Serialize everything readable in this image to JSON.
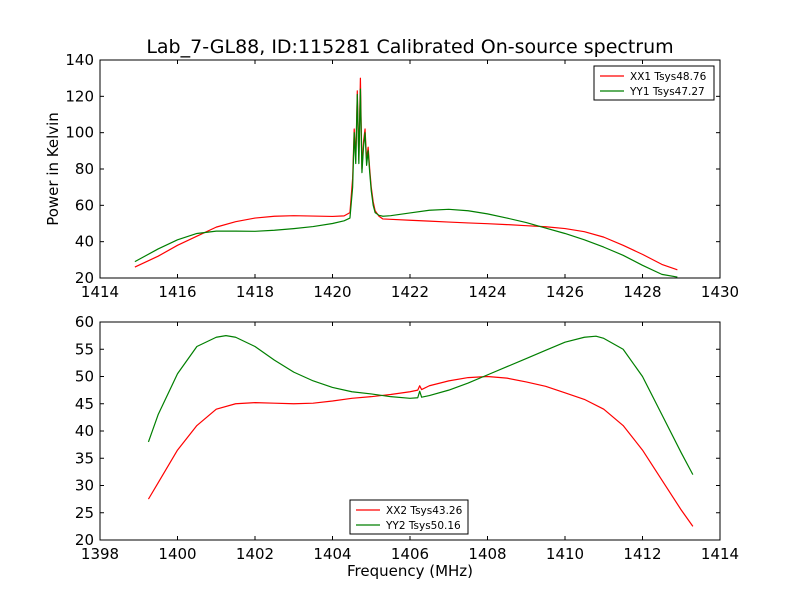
{
  "figure": {
    "title": "Lab_7-GL88, ID:115281 Calibrated On-source spectrum"
  },
  "chart_data": [
    {
      "type": "line",
      "title": "Lab_7-GL88, ID:115281 Calibrated On-source spectrum",
      "xlabel": "",
      "ylabel": "Power in Kelvin",
      "xlim": [
        1414,
        1430
      ],
      "ylim": [
        20,
        140
      ],
      "xticks": [
        1414,
        1416,
        1418,
        1420,
        1422,
        1424,
        1426,
        1428,
        1430
      ],
      "yticks": [
        20,
        40,
        60,
        80,
        100,
        120,
        140
      ],
      "legend_position": "top-right",
      "grid": false,
      "series": [
        {
          "name": "XX1 Tsys48.76",
          "color": "#ff0000",
          "x": [
            1414.9,
            1415.5,
            1416.0,
            1416.5,
            1417.0,
            1417.5,
            1418.0,
            1418.5,
            1419.0,
            1419.5,
            1420.0,
            1420.3,
            1420.45,
            1420.52,
            1420.56,
            1420.6,
            1420.64,
            1420.68,
            1420.72,
            1420.76,
            1420.8,
            1420.84,
            1420.88,
            1420.92,
            1420.96,
            1421.0,
            1421.05,
            1421.1,
            1421.2,
            1421.3,
            1421.5,
            1422.0,
            1422.5,
            1423.0,
            1423.5,
            1424.0,
            1424.5,
            1425.0,
            1425.5,
            1426.0,
            1426.5,
            1427.0,
            1427.5,
            1428.0,
            1428.5,
            1428.9
          ],
          "y": [
            26,
            32,
            38,
            43,
            48,
            51,
            53,
            54,
            54.3,
            54.1,
            53.9,
            54.2,
            56,
            75,
            102,
            85,
            123,
            85,
            130,
            80,
            95,
            102,
            85,
            92,
            80,
            70,
            62,
            57,
            54,
            52.5,
            52.3,
            51.8,
            51.3,
            50.8,
            50.3,
            49.9,
            49.4,
            48.8,
            48.2,
            47.2,
            45.5,
            42.5,
            38,
            33,
            27.5,
            24.5
          ]
        },
        {
          "name": "YY1 Tsys47.27",
          "color": "#007f00",
          "x": [
            1414.9,
            1415.5,
            1416.0,
            1416.5,
            1417.0,
            1417.5,
            1418.0,
            1418.5,
            1419.0,
            1419.5,
            1420.0,
            1420.3,
            1420.45,
            1420.52,
            1420.56,
            1420.6,
            1420.64,
            1420.68,
            1420.72,
            1420.76,
            1420.8,
            1420.84,
            1420.88,
            1420.92,
            1420.96,
            1421.0,
            1421.05,
            1421.1,
            1421.2,
            1421.3,
            1421.5,
            1422.0,
            1422.5,
            1423.0,
            1423.5,
            1424.0,
            1424.5,
            1425.0,
            1425.5,
            1426.0,
            1426.5,
            1427.0,
            1427.5,
            1428.0,
            1428.5,
            1428.9
          ],
          "y": [
            29,
            36,
            41,
            44.5,
            45.8,
            45.8,
            45.7,
            46.3,
            47.2,
            48.3,
            50,
            51.5,
            53,
            70,
            100,
            83,
            121,
            83,
            124,
            78,
            92,
            100,
            82,
            90,
            78,
            68,
            60,
            56,
            54.5,
            54,
            54.3,
            55.8,
            57.3,
            57.8,
            57,
            55.3,
            53,
            50.5,
            47.5,
            44.5,
            41,
            37,
            32.5,
            27,
            22,
            20.5
          ]
        }
      ]
    },
    {
      "type": "line",
      "title": "",
      "xlabel": "Frequency (MHz)",
      "ylabel": "",
      "xlim": [
        1398,
        1414
      ],
      "ylim": [
        20,
        60
      ],
      "xticks": [
        1398,
        1400,
        1402,
        1404,
        1406,
        1408,
        1410,
        1412,
        1414
      ],
      "yticks": [
        20,
        25,
        30,
        35,
        40,
        45,
        50,
        55,
        60
      ],
      "legend_position": "bottom-center",
      "grid": false,
      "series": [
        {
          "name": "XX2 Tsys43.26",
          "color": "#ff0000",
          "x": [
            1399.25,
            1399.5,
            1400.0,
            1400.5,
            1401.0,
            1401.5,
            1402.0,
            1402.5,
            1403.0,
            1403.5,
            1404.0,
            1404.5,
            1405.0,
            1405.5,
            1406.0,
            1406.2,
            1406.25,
            1406.3,
            1406.5,
            1407.0,
            1407.5,
            1408.0,
            1408.5,
            1409.0,
            1409.5,
            1410.0,
            1410.5,
            1411.0,
            1411.5,
            1412.0,
            1412.5,
            1413.0,
            1413.3
          ],
          "y": [
            27.5,
            30.5,
            36.5,
            41,
            44,
            45,
            45.2,
            45.1,
            45,
            45.1,
            45.5,
            46,
            46.3,
            46.7,
            47.2,
            47.5,
            48.3,
            47.6,
            48.3,
            49.2,
            49.8,
            50,
            49.7,
            49,
            48.2,
            47,
            45.8,
            44,
            41,
            36.5,
            31,
            25.5,
            22.5
          ]
        },
        {
          "name": "YY2 Tsys50.16",
          "color": "#007f00",
          "x": [
            1399.25,
            1399.5,
            1400.0,
            1400.5,
            1401.0,
            1401.25,
            1401.5,
            1402.0,
            1402.5,
            1403.0,
            1403.5,
            1404.0,
            1404.5,
            1405.0,
            1405.5,
            1406.0,
            1406.2,
            1406.25,
            1406.3,
            1406.5,
            1407.0,
            1407.5,
            1408.0,
            1408.5,
            1409.0,
            1409.5,
            1410.0,
            1410.5,
            1410.8,
            1411.0,
            1411.5,
            1412.0,
            1412.5,
            1413.0,
            1413.3
          ],
          "y": [
            38,
            43,
            50.5,
            55.5,
            57.2,
            57.5,
            57.2,
            55.5,
            53,
            50.8,
            49.2,
            48,
            47.2,
            46.8,
            46.3,
            46,
            46.1,
            47.3,
            46.2,
            46.5,
            47.5,
            48.8,
            50.3,
            51.8,
            53.3,
            54.8,
            56.3,
            57.2,
            57.4,
            57,
            55,
            50,
            43,
            36,
            32
          ]
        }
      ]
    }
  ]
}
